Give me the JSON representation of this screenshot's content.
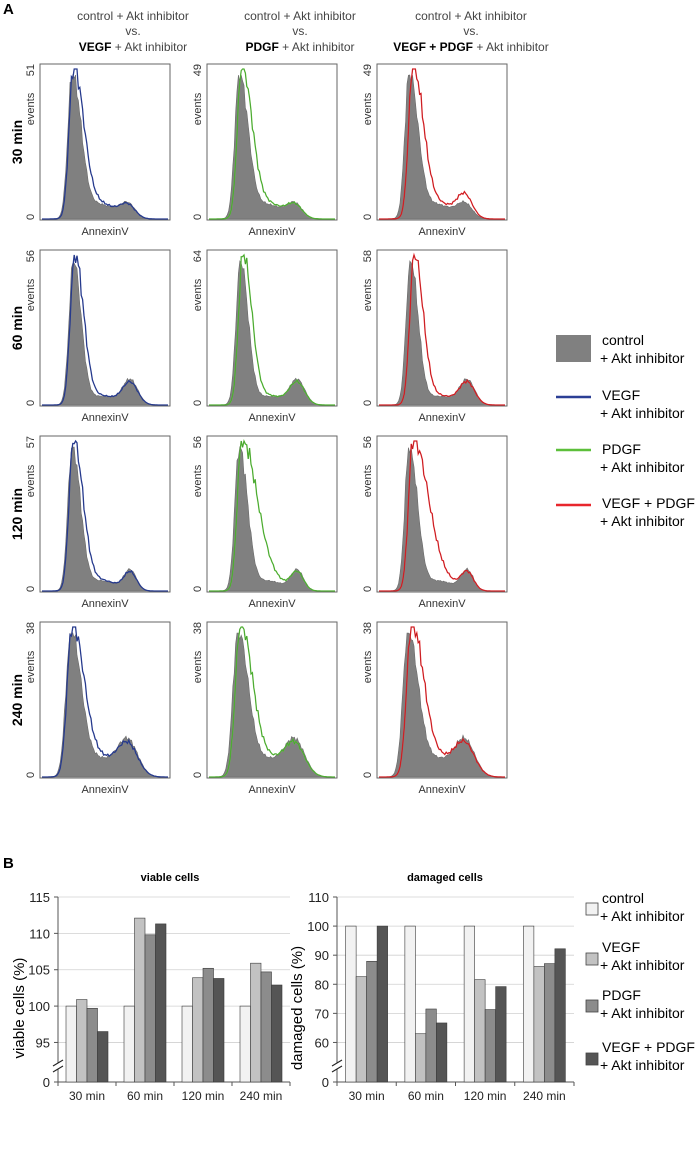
{
  "panel_a": {
    "label": "A",
    "column_headers": [
      {
        "line1": "control + Akt inhibitor",
        "line2": "vs.",
        "line3_bold": "VEGF",
        "line3_rest": " + Akt inhibitor"
      },
      {
        "line1": "control + Akt inhibitor",
        "line2": "vs.",
        "line3_bold": "PDGF",
        "line3_rest": " + Akt inhibitor"
      },
      {
        "line1": "control + Akt inhibitor",
        "line2": "vs.",
        "line3_bold": "VEGF + PDGF",
        "line3_rest": " + Akt inhibitor"
      }
    ],
    "row_labels": [
      "30 min",
      "60 min",
      "120 min",
      "240 min"
    ],
    "y_label": "events",
    "x_label": "AnnexinV",
    "y_zero": "0",
    "y_max": [
      [
        "51",
        "49",
        "49"
      ],
      [
        "56",
        "64",
        "58"
      ],
      [
        "57",
        "56",
        "56"
      ],
      [
        "38",
        "38",
        "38"
      ]
    ],
    "legend": [
      {
        "line1": "control",
        "line2": "+ Akt inhibitor",
        "kind": "fill",
        "color": "#808080"
      },
      {
        "line1": "VEGF",
        "line2": "+ Akt inhibitor",
        "kind": "line",
        "color": "#2b3f95"
      },
      {
        "line1": "PDGF",
        "line2": "+ Akt inhibitor",
        "kind": "line",
        "color": "#5cbf3a"
      },
      {
        "line1": "VEGF + PDGF",
        "line2": "+ Akt inhibitor",
        "kind": "line",
        "color": "#e8262c"
      }
    ],
    "overlay_colors": {
      "VEGF": "#2b3f95",
      "PDGF": "#5cbf3a",
      "VEGF + PDGF": "#e8262c"
    }
  },
  "panel_b": {
    "label": "B",
    "legend": [
      {
        "line1": "control",
        "line2": "+ Akt inhibitor",
        "color": "#f2f2f2"
      },
      {
        "line1": "VEGF",
        "line2": "+ Akt inhibitor",
        "color": "#c2c2c2"
      },
      {
        "line1": "PDGF",
        "line2": "+ Akt inhibitor",
        "color": "#8c8c8c"
      },
      {
        "line1": "VEGF + PDGF",
        "line2": "+ Akt inhibitor",
        "color": "#555555"
      }
    ]
  },
  "chart_data": [
    {
      "type": "bar",
      "title": "viable cells",
      "xlabel": "",
      "ylabel": "viable cells (%)",
      "categories": [
        "30 min",
        "60 min",
        "120 min",
        "240 min"
      ],
      "yticks": [
        "0",
        "95",
        "100",
        "105",
        "110",
        "115"
      ],
      "ylim": [
        93,
        115
      ],
      "axis_break": true,
      "series": [
        {
          "name": "control + Akt inhibitor",
          "values": [
            100,
            100,
            100,
            100
          ]
        },
        {
          "name": "VEGF + Akt inhibitor",
          "values": [
            100.9,
            112.1,
            103.9,
            105.9
          ]
        },
        {
          "name": "PDGF + Akt inhibitor",
          "values": [
            99.7,
            109.8,
            105.2,
            104.7
          ]
        },
        {
          "name": "VEGF + PDGF + Akt inhibitor",
          "values": [
            96.5,
            111.3,
            103.8,
            102.9
          ]
        }
      ]
    },
    {
      "type": "bar",
      "title": "damaged cells",
      "xlabel": "",
      "ylabel": "damaged cells (%)",
      "categories": [
        "30 min",
        "60 min",
        "120 min",
        "240 min"
      ],
      "yticks": [
        "0",
        "60",
        "70",
        "80",
        "90",
        "100",
        "110"
      ],
      "ylim": [
        55,
        110
      ],
      "axis_break": true,
      "series": [
        {
          "name": "control + Akt inhibitor",
          "values": [
            100,
            100,
            100,
            100
          ]
        },
        {
          "name": "VEGF + Akt inhibitor",
          "values": [
            82.6,
            63,
            81.6,
            86.1
          ]
        },
        {
          "name": "PDGF + Akt inhibitor",
          "values": [
            87.9,
            71.5,
            71.3,
            87.1
          ]
        },
        {
          "name": "VEGF + PDGF + Akt inhibitor",
          "values": [
            100,
            66.7,
            79.2,
            92.2
          ]
        }
      ]
    }
  ]
}
